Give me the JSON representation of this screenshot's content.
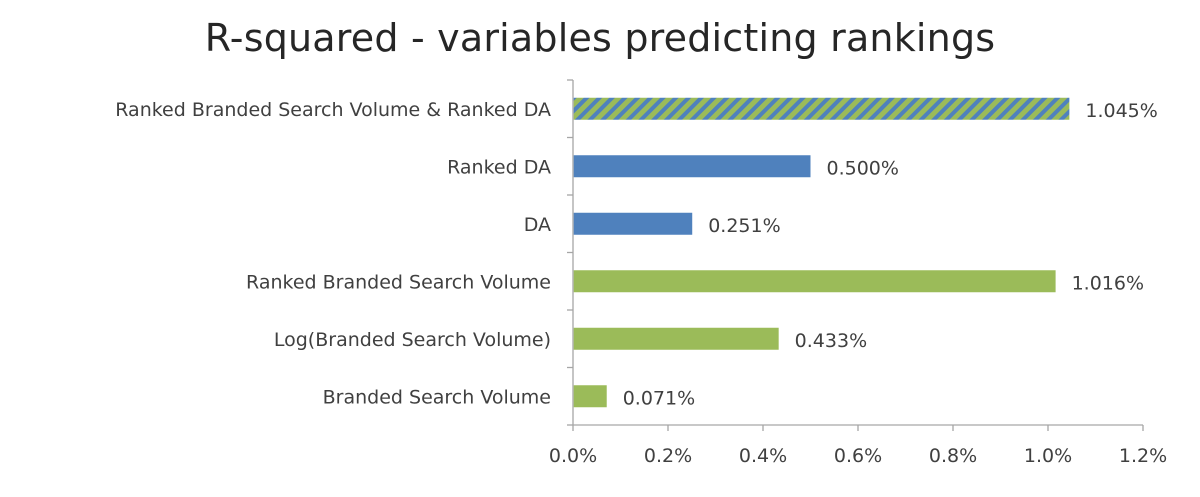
{
  "chart_data": {
    "type": "bar",
    "orientation": "horizontal",
    "title": "R-squared - variables predicting rankings",
    "xlabel": "",
    "ylabel": "",
    "xlim": [
      0,
      1.2
    ],
    "x_ticks": [
      0,
      0.2,
      0.4,
      0.6,
      0.8,
      1.0,
      1.2
    ],
    "x_tick_labels": [
      "0.0%",
      "0.2%",
      "0.4%",
      "0.6%",
      "0.8%",
      "1.0%",
      "1.2%"
    ],
    "grid": false,
    "legend": "none",
    "categories": [
      "Ranked Branded Search Volume & Ranked DA",
      "Ranked DA",
      "DA",
      "Ranked Branded Search Volume",
      "Log(Branded Search Volume)",
      "Branded Search Volume"
    ],
    "values": [
      1.045,
      0.5,
      0.251,
      1.016,
      0.433,
      0.071
    ],
    "data_labels": [
      "1.045%",
      "0.500%",
      "0.251%",
      "1.016%",
      "0.433%",
      "0.071%"
    ],
    "bar_styles": [
      "hatched",
      "blue",
      "blue",
      "green",
      "green",
      "green"
    ]
  },
  "colors": {
    "blue": "#4F81BD",
    "green": "#9BBB59",
    "axis": "#A6A6A6",
    "text": "#404040",
    "title": "#262626"
  }
}
